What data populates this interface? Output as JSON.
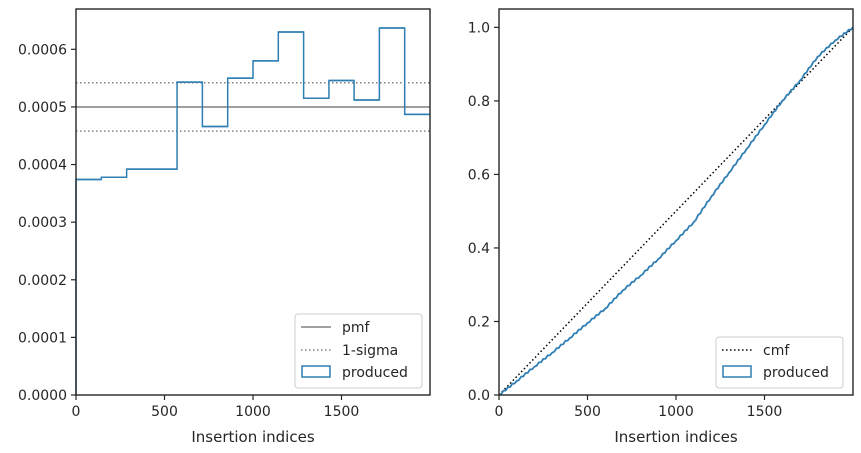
{
  "colors": {
    "produced": "#2f7fb4",
    "pmf": "#808080",
    "sigma": "#808080",
    "cmf": "#000000",
    "axes": "#262626"
  },
  "chart_data": [
    {
      "type": "step-histogram",
      "xlabel": "Insertion indices",
      "ylabel": "",
      "xlim": [
        0,
        2000
      ],
      "ylim": [
        0,
        0.00067
      ],
      "xticks": [
        0,
        500,
        1000,
        1500
      ],
      "xtick_labels": [
        "0",
        "500",
        "1000",
        "1500"
      ],
      "yticks": [
        0,
        0.0001,
        0.0002,
        0.0003,
        0.0004,
        0.0005,
        0.0006
      ],
      "ytick_labels": [
        "0.0000",
        "0.0001",
        "0.0002",
        "0.0003",
        "0.0004",
        "0.0005",
        "0.0006"
      ],
      "bin_edges": [
        0,
        143,
        286,
        429,
        571,
        714,
        857,
        1000,
        1143,
        1286,
        1429,
        1571,
        1714,
        1857,
        2000
      ],
      "values": [
        0.000374,
        0.000378,
        0.000392,
        0.000392,
        0.000543,
        0.000466,
        0.00055,
        0.00058,
        0.00063,
        0.000515,
        0.000546,
        0.000512,
        0.000637,
        0.000487
      ],
      "pmf": 0.0005,
      "sigma_band": [
        0.000458,
        0.000542
      ],
      "legend": [
        {
          "label": "pmf",
          "kind": "solid-line"
        },
        {
          "label": "1-sigma",
          "kind": "dotted-line"
        },
        {
          "label": "produced",
          "kind": "box"
        }
      ],
      "legend_position": "lower-right"
    },
    {
      "type": "line",
      "xlabel": "Insertion indices",
      "ylabel": "",
      "xlim": [
        0,
        2000
      ],
      "ylim": [
        0,
        1.05
      ],
      "xticks": [
        0,
        500,
        1000,
        1500
      ],
      "xtick_labels": [
        "0",
        "500",
        "1000",
        "1500"
      ],
      "yticks": [
        0,
        0.2,
        0.4,
        0.6,
        0.8,
        1.0
      ],
      "ytick_labels": [
        "0.0",
        "0.2",
        "0.4",
        "0.6",
        "0.8",
        "1.0"
      ],
      "series": [
        {
          "name": "cmf",
          "style": "dotted",
          "x": [
            0,
            2000
          ],
          "y": [
            0,
            1.0
          ]
        },
        {
          "name": "produced",
          "style": "step",
          "x": [
            0,
            100,
            200,
            300,
            400,
            500,
            600,
            700,
            800,
            900,
            1000,
            1100,
            1200,
            1300,
            1400,
            1500,
            1600,
            1700,
            1800,
            1900,
            2000
          ],
          "y": [
            0,
            0.038,
            0.077,
            0.115,
            0.155,
            0.196,
            0.235,
            0.285,
            0.325,
            0.37,
            0.42,
            0.47,
            0.54,
            0.605,
            0.67,
            0.735,
            0.8,
            0.855,
            0.92,
            0.965,
            1.0
          ]
        }
      ],
      "legend": [
        {
          "label": "cmf",
          "kind": "dotted-line"
        },
        {
          "label": "produced",
          "kind": "box"
        }
      ],
      "legend_position": "lower-right"
    }
  ]
}
